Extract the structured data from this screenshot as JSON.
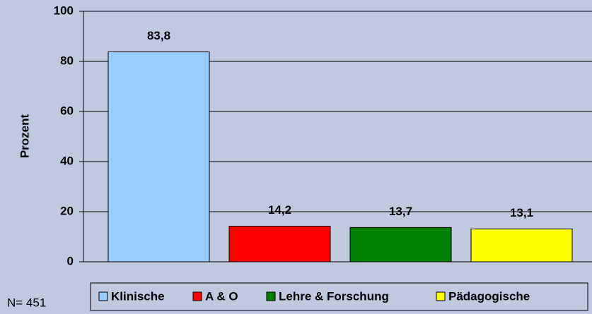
{
  "chart_data": {
    "type": "bar",
    "ylabel": "Prozent",
    "annotation": "N= 451",
    "series": [
      {
        "name": "Klinische",
        "color": "#99ccff",
        "values": [
          83.8
        ],
        "value_labels": [
          "83,8"
        ]
      },
      {
        "name": "A & O",
        "color": "#ff0000",
        "values": [
          14.2
        ],
        "value_labels": [
          "14,2"
        ]
      },
      {
        "name": "Lehre & Forschung",
        "color": "#008000",
        "values": [
          13.7
        ],
        "value_labels": [
          "13,7"
        ]
      },
      {
        "name": "Pädagogische",
        "color": "#ffff00",
        "values": [
          13.1
        ],
        "value_labels": [
          "13,1"
        ]
      }
    ],
    "ylim": [
      0,
      100
    ],
    "yticks": [
      0,
      20,
      40,
      60,
      80,
      100
    ],
    "grid": true,
    "legend": "bottom"
  }
}
